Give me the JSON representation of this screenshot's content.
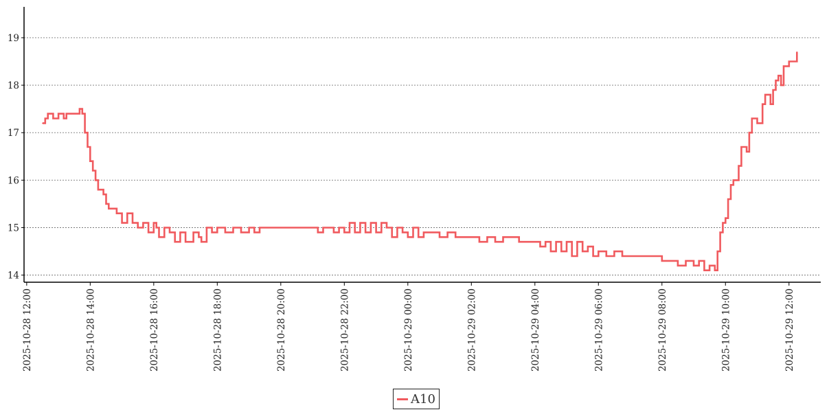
{
  "chart_data": {
    "type": "line",
    "title": "",
    "xlabel": "",
    "ylabel": "",
    "x_tick_labels": [
      "2025-10-28 12:00",
      "2025-10-28 14:00",
      "2025-10-28 16:00",
      "2025-10-28 18:00",
      "2025-10-28 20:00",
      "2025-10-28 22:00",
      "2025-10-29 00:00",
      "2025-10-29 02:00",
      "2025-10-29 04:00",
      "2025-10-29 06:00",
      "2025-10-29 08:00",
      "2025-10-29 10:00",
      "2025-10-29 12:00"
    ],
    "x_range": [
      "2025-10-28 11:55",
      "2025-10-29 13:00"
    ],
    "y_ticks": [
      14,
      15,
      16,
      17,
      18,
      19
    ],
    "ylim": [
      13.85,
      19.65
    ],
    "grid": "horizontal dotted",
    "legend_position": "bottom-center",
    "series": [
      {
        "name": "A10",
        "color": "#f05a5e",
        "points": [
          [
            "2025-10-28 12:30",
            17.2
          ],
          [
            "2025-10-28 12:35",
            17.3
          ],
          [
            "2025-10-28 12:40",
            17.4
          ],
          [
            "2025-10-28 12:50",
            17.3
          ],
          [
            "2025-10-28 13:00",
            17.4
          ],
          [
            "2025-10-28 13:10",
            17.3
          ],
          [
            "2025-10-28 13:15",
            17.4
          ],
          [
            "2025-10-28 13:25",
            17.4
          ],
          [
            "2025-10-28 13:40",
            17.5
          ],
          [
            "2025-10-28 13:45",
            17.4
          ],
          [
            "2025-10-28 13:50",
            17.0
          ],
          [
            "2025-10-28 13:55",
            16.7
          ],
          [
            "2025-10-28 14:00",
            16.4
          ],
          [
            "2025-10-28 14:05",
            16.2
          ],
          [
            "2025-10-28 14:10",
            16.0
          ],
          [
            "2025-10-28 14:15",
            15.8
          ],
          [
            "2025-10-28 14:25",
            15.7
          ],
          [
            "2025-10-28 14:30",
            15.5
          ],
          [
            "2025-10-28 14:35",
            15.4
          ],
          [
            "2025-10-28 14:50",
            15.3
          ],
          [
            "2025-10-28 15:00",
            15.1
          ],
          [
            "2025-10-28 15:10",
            15.3
          ],
          [
            "2025-10-28 15:20",
            15.1
          ],
          [
            "2025-10-28 15:30",
            15.0
          ],
          [
            "2025-10-28 15:40",
            15.1
          ],
          [
            "2025-10-28 15:50",
            14.9
          ],
          [
            "2025-10-28 16:00",
            15.1
          ],
          [
            "2025-10-28 16:05",
            15.0
          ],
          [
            "2025-10-28 16:10",
            14.8
          ],
          [
            "2025-10-28 16:20",
            15.0
          ],
          [
            "2025-10-28 16:30",
            14.9
          ],
          [
            "2025-10-28 16:40",
            14.7
          ],
          [
            "2025-10-28 16:50",
            14.9
          ],
          [
            "2025-10-28 17:00",
            14.7
          ],
          [
            "2025-10-28 17:15",
            14.9
          ],
          [
            "2025-10-28 17:25",
            14.8
          ],
          [
            "2025-10-28 17:30",
            14.7
          ],
          [
            "2025-10-28 17:40",
            15.0
          ],
          [
            "2025-10-28 17:50",
            14.9
          ],
          [
            "2025-10-28 18:00",
            15.0
          ],
          [
            "2025-10-28 18:15",
            14.9
          ],
          [
            "2025-10-28 18:30",
            15.0
          ],
          [
            "2025-10-28 18:45",
            14.9
          ],
          [
            "2025-10-28 19:00",
            15.0
          ],
          [
            "2025-10-28 19:10",
            14.9
          ],
          [
            "2025-10-28 19:20",
            15.0
          ],
          [
            "2025-10-28 19:40",
            15.0
          ],
          [
            "2025-10-28 20:00",
            15.0
          ],
          [
            "2025-10-28 20:30",
            15.0
          ],
          [
            "2025-10-28 21:00",
            15.0
          ],
          [
            "2025-10-28 21:10",
            14.9
          ],
          [
            "2025-10-28 21:20",
            15.0
          ],
          [
            "2025-10-28 21:40",
            14.9
          ],
          [
            "2025-10-28 21:50",
            15.0
          ],
          [
            "2025-10-28 22:00",
            14.9
          ],
          [
            "2025-10-28 22:10",
            15.1
          ],
          [
            "2025-10-28 22:20",
            14.9
          ],
          [
            "2025-10-28 22:30",
            15.1
          ],
          [
            "2025-10-28 22:40",
            14.9
          ],
          [
            "2025-10-28 22:50",
            15.1
          ],
          [
            "2025-10-28 23:00",
            14.9
          ],
          [
            "2025-10-28 23:10",
            15.1
          ],
          [
            "2025-10-28 23:20",
            15.0
          ],
          [
            "2025-10-28 23:30",
            14.8
          ],
          [
            "2025-10-28 23:40",
            15.0
          ],
          [
            "2025-10-28 23:50",
            14.9
          ],
          [
            "2025-10-29 00:00",
            14.8
          ],
          [
            "2025-10-29 00:10",
            15.0
          ],
          [
            "2025-10-29 00:20",
            14.8
          ],
          [
            "2025-10-29 00:30",
            14.9
          ],
          [
            "2025-10-29 00:45",
            14.9
          ],
          [
            "2025-10-29 01:00",
            14.8
          ],
          [
            "2025-10-29 01:15",
            14.9
          ],
          [
            "2025-10-29 01:30",
            14.8
          ],
          [
            "2025-10-29 02:00",
            14.8
          ],
          [
            "2025-10-29 02:15",
            14.7
          ],
          [
            "2025-10-29 02:30",
            14.8
          ],
          [
            "2025-10-29 02:45",
            14.7
          ],
          [
            "2025-10-29 03:00",
            14.8
          ],
          [
            "2025-10-29 03:30",
            14.7
          ],
          [
            "2025-10-29 04:00",
            14.7
          ],
          [
            "2025-10-29 04:10",
            14.6
          ],
          [
            "2025-10-29 04:20",
            14.7
          ],
          [
            "2025-10-29 04:30",
            14.5
          ],
          [
            "2025-10-29 04:40",
            14.7
          ],
          [
            "2025-10-29 04:50",
            14.5
          ],
          [
            "2025-10-29 05:00",
            14.7
          ],
          [
            "2025-10-29 05:10",
            14.4
          ],
          [
            "2025-10-29 05:20",
            14.7
          ],
          [
            "2025-10-29 05:30",
            14.5
          ],
          [
            "2025-10-29 05:40",
            14.6
          ],
          [
            "2025-10-29 05:50",
            14.4
          ],
          [
            "2025-10-29 06:00",
            14.5
          ],
          [
            "2025-10-29 06:15",
            14.4
          ],
          [
            "2025-10-29 06:30",
            14.5
          ],
          [
            "2025-10-29 06:45",
            14.4
          ],
          [
            "2025-10-29 07:00",
            14.4
          ],
          [
            "2025-10-29 07:30",
            14.4
          ],
          [
            "2025-10-29 08:00",
            14.3
          ],
          [
            "2025-10-29 08:15",
            14.3
          ],
          [
            "2025-10-29 08:30",
            14.2
          ],
          [
            "2025-10-29 08:45",
            14.3
          ],
          [
            "2025-10-29 09:00",
            14.2
          ],
          [
            "2025-10-29 09:10",
            14.3
          ],
          [
            "2025-10-29 09:20",
            14.1
          ],
          [
            "2025-10-29 09:30",
            14.2
          ],
          [
            "2025-10-29 09:40",
            14.1
          ],
          [
            "2025-10-29 09:45",
            14.5
          ],
          [
            "2025-10-29 09:50",
            14.9
          ],
          [
            "2025-10-29 09:55",
            15.1
          ],
          [
            "2025-10-29 10:00",
            15.2
          ],
          [
            "2025-10-29 10:05",
            15.6
          ],
          [
            "2025-10-29 10:10",
            15.9
          ],
          [
            "2025-10-29 10:15",
            16.0
          ],
          [
            "2025-10-29 10:20",
            16.0
          ],
          [
            "2025-10-29 10:25",
            16.3
          ],
          [
            "2025-10-29 10:30",
            16.7
          ],
          [
            "2025-10-29 10:40",
            16.6
          ],
          [
            "2025-10-29 10:45",
            17.0
          ],
          [
            "2025-10-29 10:50",
            17.3
          ],
          [
            "2025-10-29 11:00",
            17.2
          ],
          [
            "2025-10-29 11:10",
            17.6
          ],
          [
            "2025-10-29 11:15",
            17.8
          ],
          [
            "2025-10-29 11:25",
            17.6
          ],
          [
            "2025-10-29 11:30",
            17.9
          ],
          [
            "2025-10-29 11:35",
            18.1
          ],
          [
            "2025-10-29 11:40",
            18.2
          ],
          [
            "2025-10-29 11:45",
            18.0
          ],
          [
            "2025-10-29 11:50",
            18.4
          ],
          [
            "2025-10-29 12:00",
            18.5
          ],
          [
            "2025-10-29 12:10",
            18.5
          ],
          [
            "2025-10-29 12:15",
            18.7
          ]
        ]
      }
    ]
  },
  "legend": {
    "label": "A10",
    "color": "#f05a5e"
  }
}
